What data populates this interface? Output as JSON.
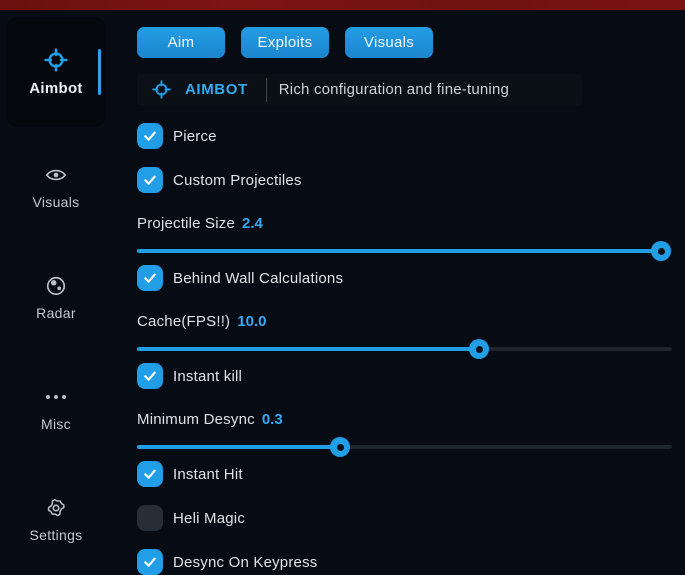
{
  "colors": {
    "accent": "#219ee6",
    "value_blue": "#35aaf1",
    "top_bar_red": "#75110f",
    "background": "#070b13"
  },
  "sidebar": {
    "items": [
      {
        "label": "Aimbot",
        "icon": "crosshair-icon",
        "active": true
      },
      {
        "label": "Visuals",
        "icon": "eye-icon",
        "active": false
      },
      {
        "label": "Radar",
        "icon": "radar-icon",
        "active": false
      },
      {
        "label": "Misc",
        "icon": "ellipsis-icon",
        "active": false
      },
      {
        "label": "Settings",
        "icon": "gear-icon",
        "active": false
      }
    ]
  },
  "tabs": [
    {
      "label": "Aim"
    },
    {
      "label": "Exploits"
    },
    {
      "label": "Visuals"
    }
  ],
  "header": {
    "icon": "crosshair-icon",
    "title": "AIMBOT",
    "subtitle": "Rich configuration and fine-tuning"
  },
  "controls": [
    {
      "type": "checkbox",
      "label": "Pierce",
      "checked": true
    },
    {
      "type": "checkbox",
      "label": "Custom Projectiles",
      "checked": true
    },
    {
      "type": "slider",
      "label": "Projectile Size",
      "value": "2.4",
      "percent": 98
    },
    {
      "type": "checkbox",
      "label": "Behind Wall Calculations",
      "checked": true
    },
    {
      "type": "slider",
      "label": "Cache(FPS!!)",
      "value": "10.0",
      "percent": 64
    },
    {
      "type": "checkbox",
      "label": "Instant kill",
      "checked": true
    },
    {
      "type": "slider",
      "label": "Minimum Desync",
      "value": "0.3",
      "percent": 38
    },
    {
      "type": "checkbox",
      "label": "Instant Hit",
      "checked": true
    },
    {
      "type": "checkbox",
      "label": "Heli Magic",
      "checked": false
    },
    {
      "type": "checkbox",
      "label": "Desync On Keypress",
      "checked": true
    }
  ]
}
